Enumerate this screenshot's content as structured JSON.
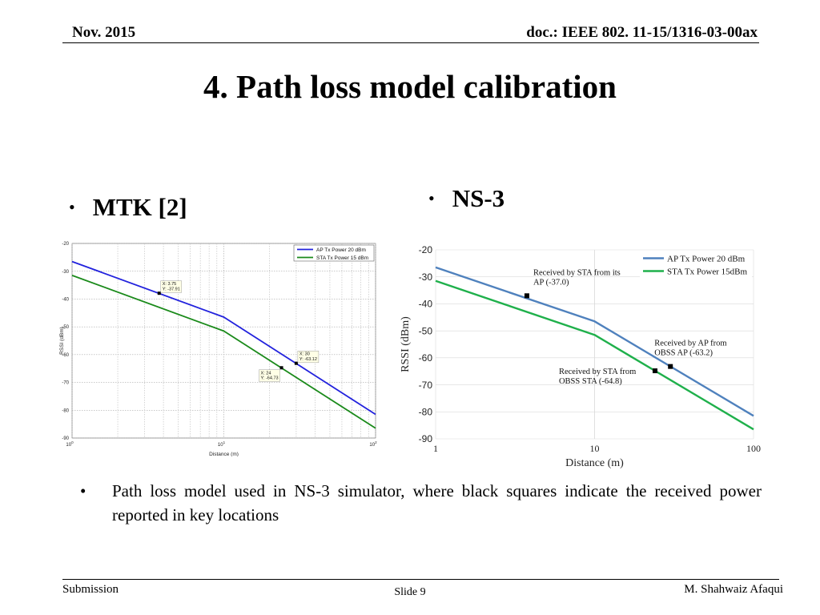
{
  "header": {
    "date": "Nov. 2015",
    "doc": "doc.: IEEE 802. 11-15/1316-03-00ax"
  },
  "title": "4. Path loss model calibration",
  "bullets": {
    "left_heading": "MTK [2]",
    "right_heading": "NS-3",
    "bullet_char": "•"
  },
  "caption": "Path loss model used in NS-3 simulator, where black squares indicate the received power reported in key locations",
  "footer": {
    "left": "Submission",
    "center": "Slide 9",
    "right": "M. Shahwaiz Afaqui"
  },
  "colors": {
    "ap_mtk": "#2222dd",
    "sta_mtk": "#1a8a1a",
    "ap_ns3": "#4f81bd",
    "sta_ns3": "#1fb04b",
    "marker": "#000000"
  },
  "chart_data": [
    {
      "id": "mtk",
      "type": "line",
      "title": "",
      "xlabel": "Distance (m)",
      "ylabel": "RSSI (dBm)",
      "xscale": "log",
      "xlim": [
        1,
        100
      ],
      "ylim": [
        -90,
        -20
      ],
      "grid": true,
      "legend_position": "top-right",
      "x_ticks": [
        {
          "v": 1,
          "base": "10",
          "exp": "0"
        },
        {
          "v": 10,
          "base": "10",
          "exp": "1"
        },
        {
          "v": 100,
          "base": "10",
          "exp": "2"
        }
      ],
      "y_ticks": [
        -20,
        -30,
        -40,
        -50,
        -60,
        -70,
        -80,
        -90
      ],
      "series": [
        {
          "name": "AP Tx Power 20 dBm",
          "color_key": "ap_mtk",
          "x": [
            1,
            10,
            100
          ],
          "y": [
            -26.5,
            -46.5,
            -81.5
          ]
        },
        {
          "name": "STA Tx Power 15 dBm",
          "color_key": "sta_mtk",
          "x": [
            1,
            10,
            100
          ],
          "y": [
            -31.5,
            -51.5,
            -86.5
          ]
        }
      ],
      "annotations": [
        {
          "x": 3.75,
          "y": -37.91,
          "lines": [
            "X: 3.75",
            "Y: -37.91"
          ],
          "side": "above-right"
        },
        {
          "x": 30,
          "y": -63.12,
          "lines": [
            "X: 30",
            "Y: -63.12"
          ],
          "side": "above-right"
        },
        {
          "x": 24,
          "y": -64.73,
          "lines": [
            "X: 24",
            "Y: -64.73"
          ],
          "side": "below-left"
        }
      ]
    },
    {
      "id": "ns3",
      "type": "line",
      "title": "",
      "xlabel": "Distance (m)",
      "ylabel": "RSSI (dBm)",
      "xscale": "log",
      "xlim": [
        1,
        100
      ],
      "ylim": [
        -90,
        -20
      ],
      "grid": true,
      "legend_position": "top-right",
      "x_ticks": [
        {
          "v": 1,
          "label": "1"
        },
        {
          "v": 10,
          "label": "10"
        },
        {
          "v": 100,
          "label": "100"
        }
      ],
      "y_ticks": [
        -20,
        -30,
        -40,
        -50,
        -60,
        -70,
        -80,
        -90
      ],
      "series": [
        {
          "name": "AP Tx Power 20 dBm",
          "color_key": "ap_ns3",
          "x": [
            1,
            10,
            100
          ],
          "y": [
            -26.5,
            -46.5,
            -81.5
          ]
        },
        {
          "name": "STA Tx Power 15dBm",
          "color_key": "sta_ns3",
          "x": [
            1,
            10,
            100
          ],
          "y": [
            -31.5,
            -51.5,
            -86.5
          ]
        }
      ],
      "annotations": [
        {
          "x": 3.75,
          "y": -37.0,
          "lines": [
            "Received by STA from its",
            "AP (-37.0)"
          ],
          "side": "above-right"
        },
        {
          "x": 30,
          "y": -63.2,
          "lines": [
            "Received by AP from",
            "OBSS AP (-63.2)"
          ],
          "side": "above-right"
        },
        {
          "x": 24,
          "y": -64.8,
          "lines": [
            "Received by STA from",
            "OBSS STA (-64.8)"
          ],
          "side": "below-left"
        }
      ]
    }
  ]
}
